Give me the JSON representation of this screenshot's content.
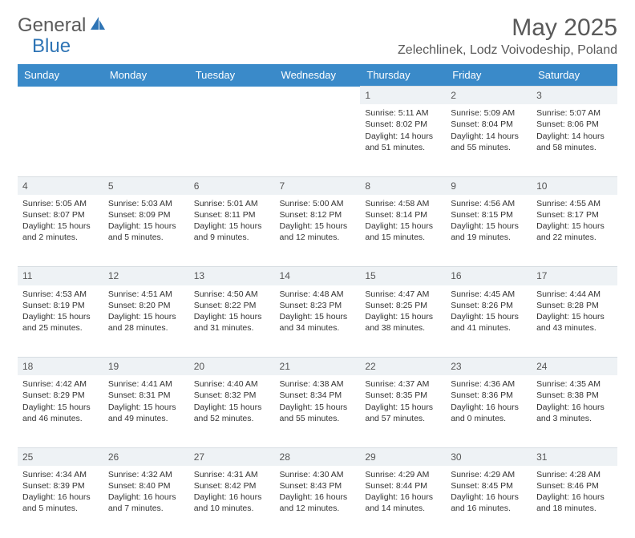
{
  "logo": {
    "text1": "General",
    "text2": "Blue"
  },
  "title": "May 2025",
  "location": "Zelechlinek, Lodz Voivodeship, Poland",
  "colors": {
    "header_bg": "#3a8ac9",
    "header_text": "#ffffff",
    "daynum_bg": "#eef2f5",
    "text": "#333333",
    "title_text": "#595959",
    "logo_blue": "#2e74b5"
  },
  "weekdays": [
    "Sunday",
    "Monday",
    "Tuesday",
    "Wednesday",
    "Thursday",
    "Friday",
    "Saturday"
  ],
  "weeks": [
    {
      "nums": [
        "",
        "",
        "",
        "",
        "1",
        "2",
        "3"
      ],
      "cells": [
        null,
        null,
        null,
        null,
        {
          "sunrise": "Sunrise: 5:11 AM",
          "sunset": "Sunset: 8:02 PM",
          "day1": "Daylight: 14 hours",
          "day2": "and 51 minutes."
        },
        {
          "sunrise": "Sunrise: 5:09 AM",
          "sunset": "Sunset: 8:04 PM",
          "day1": "Daylight: 14 hours",
          "day2": "and 55 minutes."
        },
        {
          "sunrise": "Sunrise: 5:07 AM",
          "sunset": "Sunset: 8:06 PM",
          "day1": "Daylight: 14 hours",
          "day2": "and 58 minutes."
        }
      ]
    },
    {
      "nums": [
        "4",
        "5",
        "6",
        "7",
        "8",
        "9",
        "10"
      ],
      "cells": [
        {
          "sunrise": "Sunrise: 5:05 AM",
          "sunset": "Sunset: 8:07 PM",
          "day1": "Daylight: 15 hours",
          "day2": "and 2 minutes."
        },
        {
          "sunrise": "Sunrise: 5:03 AM",
          "sunset": "Sunset: 8:09 PM",
          "day1": "Daylight: 15 hours",
          "day2": "and 5 minutes."
        },
        {
          "sunrise": "Sunrise: 5:01 AM",
          "sunset": "Sunset: 8:11 PM",
          "day1": "Daylight: 15 hours",
          "day2": "and 9 minutes."
        },
        {
          "sunrise": "Sunrise: 5:00 AM",
          "sunset": "Sunset: 8:12 PM",
          "day1": "Daylight: 15 hours",
          "day2": "and 12 minutes."
        },
        {
          "sunrise": "Sunrise: 4:58 AM",
          "sunset": "Sunset: 8:14 PM",
          "day1": "Daylight: 15 hours",
          "day2": "and 15 minutes."
        },
        {
          "sunrise": "Sunrise: 4:56 AM",
          "sunset": "Sunset: 8:15 PM",
          "day1": "Daylight: 15 hours",
          "day2": "and 19 minutes."
        },
        {
          "sunrise": "Sunrise: 4:55 AM",
          "sunset": "Sunset: 8:17 PM",
          "day1": "Daylight: 15 hours",
          "day2": "and 22 minutes."
        }
      ]
    },
    {
      "nums": [
        "11",
        "12",
        "13",
        "14",
        "15",
        "16",
        "17"
      ],
      "cells": [
        {
          "sunrise": "Sunrise: 4:53 AM",
          "sunset": "Sunset: 8:19 PM",
          "day1": "Daylight: 15 hours",
          "day2": "and 25 minutes."
        },
        {
          "sunrise": "Sunrise: 4:51 AM",
          "sunset": "Sunset: 8:20 PM",
          "day1": "Daylight: 15 hours",
          "day2": "and 28 minutes."
        },
        {
          "sunrise": "Sunrise: 4:50 AM",
          "sunset": "Sunset: 8:22 PM",
          "day1": "Daylight: 15 hours",
          "day2": "and 31 minutes."
        },
        {
          "sunrise": "Sunrise: 4:48 AM",
          "sunset": "Sunset: 8:23 PM",
          "day1": "Daylight: 15 hours",
          "day2": "and 34 minutes."
        },
        {
          "sunrise": "Sunrise: 4:47 AM",
          "sunset": "Sunset: 8:25 PM",
          "day1": "Daylight: 15 hours",
          "day2": "and 38 minutes."
        },
        {
          "sunrise": "Sunrise: 4:45 AM",
          "sunset": "Sunset: 8:26 PM",
          "day1": "Daylight: 15 hours",
          "day2": "and 41 minutes."
        },
        {
          "sunrise": "Sunrise: 4:44 AM",
          "sunset": "Sunset: 8:28 PM",
          "day1": "Daylight: 15 hours",
          "day2": "and 43 minutes."
        }
      ]
    },
    {
      "nums": [
        "18",
        "19",
        "20",
        "21",
        "22",
        "23",
        "24"
      ],
      "cells": [
        {
          "sunrise": "Sunrise: 4:42 AM",
          "sunset": "Sunset: 8:29 PM",
          "day1": "Daylight: 15 hours",
          "day2": "and 46 minutes."
        },
        {
          "sunrise": "Sunrise: 4:41 AM",
          "sunset": "Sunset: 8:31 PM",
          "day1": "Daylight: 15 hours",
          "day2": "and 49 minutes."
        },
        {
          "sunrise": "Sunrise: 4:40 AM",
          "sunset": "Sunset: 8:32 PM",
          "day1": "Daylight: 15 hours",
          "day2": "and 52 minutes."
        },
        {
          "sunrise": "Sunrise: 4:38 AM",
          "sunset": "Sunset: 8:34 PM",
          "day1": "Daylight: 15 hours",
          "day2": "and 55 minutes."
        },
        {
          "sunrise": "Sunrise: 4:37 AM",
          "sunset": "Sunset: 8:35 PM",
          "day1": "Daylight: 15 hours",
          "day2": "and 57 minutes."
        },
        {
          "sunrise": "Sunrise: 4:36 AM",
          "sunset": "Sunset: 8:36 PM",
          "day1": "Daylight: 16 hours",
          "day2": "and 0 minutes."
        },
        {
          "sunrise": "Sunrise: 4:35 AM",
          "sunset": "Sunset: 8:38 PM",
          "day1": "Daylight: 16 hours",
          "day2": "and 3 minutes."
        }
      ]
    },
    {
      "nums": [
        "25",
        "26",
        "27",
        "28",
        "29",
        "30",
        "31"
      ],
      "cells": [
        {
          "sunrise": "Sunrise: 4:34 AM",
          "sunset": "Sunset: 8:39 PM",
          "day1": "Daylight: 16 hours",
          "day2": "and 5 minutes."
        },
        {
          "sunrise": "Sunrise: 4:32 AM",
          "sunset": "Sunset: 8:40 PM",
          "day1": "Daylight: 16 hours",
          "day2": "and 7 minutes."
        },
        {
          "sunrise": "Sunrise: 4:31 AM",
          "sunset": "Sunset: 8:42 PM",
          "day1": "Daylight: 16 hours",
          "day2": "and 10 minutes."
        },
        {
          "sunrise": "Sunrise: 4:30 AM",
          "sunset": "Sunset: 8:43 PM",
          "day1": "Daylight: 16 hours",
          "day2": "and 12 minutes."
        },
        {
          "sunrise": "Sunrise: 4:29 AM",
          "sunset": "Sunset: 8:44 PM",
          "day1": "Daylight: 16 hours",
          "day2": "and 14 minutes."
        },
        {
          "sunrise": "Sunrise: 4:29 AM",
          "sunset": "Sunset: 8:45 PM",
          "day1": "Daylight: 16 hours",
          "day2": "and 16 minutes."
        },
        {
          "sunrise": "Sunrise: 4:28 AM",
          "sunset": "Sunset: 8:46 PM",
          "day1": "Daylight: 16 hours",
          "day2": "and 18 minutes."
        }
      ]
    }
  ]
}
